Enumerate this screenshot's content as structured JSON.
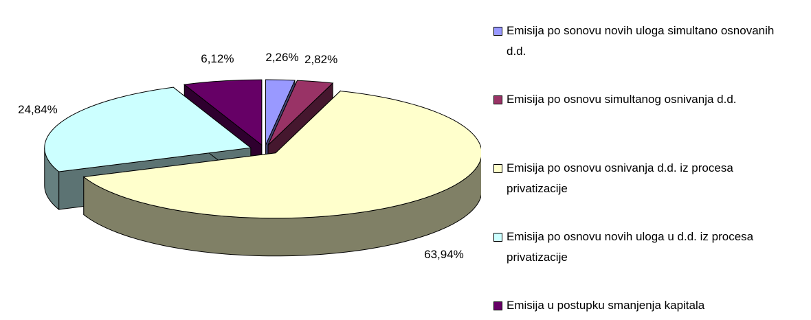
{
  "chart_data": {
    "type": "pie3d",
    "categories": [
      "Emisija po sonovu novih uloga simultano osnovanih d.d.",
      "Emisija po osnovu simultanog osnivanja d.d.",
      "Emisija po osnovu osnivanja d.d. iz procesa privatizacije",
      "Emisija po osnovu novih uloga u d.d. iz procesa privatizacije",
      "Emisija u postupku smanjenja kapitala"
    ],
    "values": [
      2.26,
      2.82,
      63.94,
      24.84,
      6.12
    ],
    "value_labels": [
      "2,26%",
      "2,82%",
      "63,94%",
      "24,84%",
      "6,12%"
    ],
    "colors": [
      "#9999ff",
      "#993366",
      "#ffffcc",
      "#ccffff",
      "#660066"
    ],
    "legend": "right"
  }
}
